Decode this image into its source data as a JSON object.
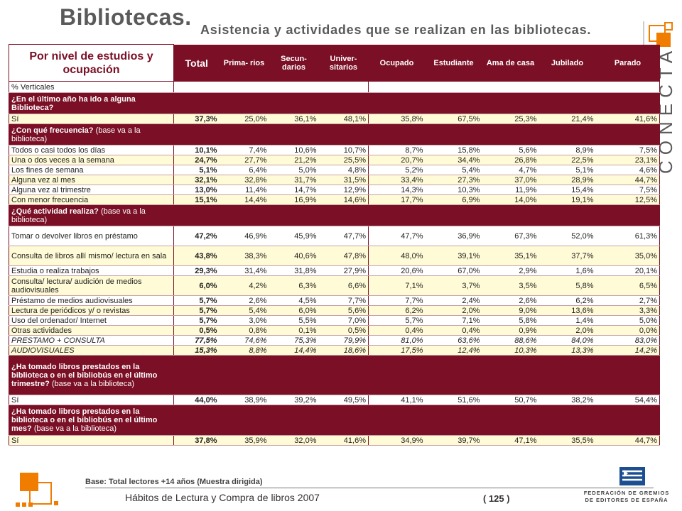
{
  "header": {
    "title": "Bibliotecas.",
    "subtitle": "Asistencia y actividades que se realizan en las bibliotecas.",
    "brand": "CONECTA"
  },
  "table": {
    "corner_title": "Por nivel de estudios y ocupación",
    "columns": [
      "Total",
      "Prima- rios",
      "Secun- darios",
      "Univer- sitarios",
      "Ocupado",
      "Estudiante",
      "Ama de casa",
      "Jubilado",
      "Parado"
    ],
    "section_label": "% Verticales",
    "blocks": [
      {
        "question": "¿En el último año ha ido a alguna Biblioteca?",
        "question_note": "",
        "rows": [
          {
            "label": "Sí",
            "values": [
              "37,3%",
              "25,0%",
              "36,1%",
              "48,1%",
              "35,8%",
              "67,5%",
              "25,3%",
              "21,4%",
              "41,6%"
            ]
          }
        ]
      },
      {
        "question": "¿Con qué frecuencia?",
        "question_note": "(base va a la biblioteca)",
        "rows": [
          {
            "label": "Todos o casi todos los días",
            "values": [
              "10,1%",
              "7,4%",
              "10,6%",
              "10,7%",
              "8,7%",
              "15,8%",
              "5,6%",
              "8,9%",
              "7,5%"
            ]
          },
          {
            "label": "Una o dos veces a la semana",
            "values": [
              "24,7%",
              "27,7%",
              "21,2%",
              "25,5%",
              "20,7%",
              "34,4%",
              "26,8%",
              "22,5%",
              "23,1%"
            ]
          },
          {
            "label": "Los fines de semana",
            "values": [
              "5,1%",
              "6,4%",
              "5,0%",
              "4,8%",
              "5,2%",
              "5,4%",
              "4,7%",
              "5,1%",
              "4,6%"
            ]
          },
          {
            "label": "Alguna vez al mes",
            "values": [
              "32,1%",
              "32,8%",
              "31,7%",
              "31,5%",
              "33,4%",
              "27,3%",
              "37,0%",
              "28,9%",
              "44,7%"
            ]
          },
          {
            "label": "Alguna vez al trimestre",
            "values": [
              "13,0%",
              "11,4%",
              "14,7%",
              "12,9%",
              "14,3%",
              "10,3%",
              "11,9%",
              "15,4%",
              "7,5%"
            ]
          },
          {
            "label": "Con menor frecuencia",
            "values": [
              "15,1%",
              "14,4%",
              "16,9%",
              "14,6%",
              "17,7%",
              "6,9%",
              "14,0%",
              "19,1%",
              "12,5%"
            ]
          }
        ]
      },
      {
        "question": "¿Qué actividad realiza?",
        "question_note": "(base va a la biblioteca)",
        "rows": [
          {
            "label": "Tomar o devolver libros en préstamo",
            "values": [
              "47,2%",
              "46,9%",
              "45,9%",
              "47,7%",
              "47,7%",
              "36,9%",
              "67,3%",
              "52,0%",
              "61,3%"
            ]
          },
          {
            "label": "Consulta de libros allí mismo/ lectura en sala",
            "values": [
              "43,8%",
              "38,3%",
              "40,6%",
              "47,8%",
              "48,0%",
              "39,1%",
              "35,1%",
              "37,7%",
              "35,0%"
            ]
          },
          {
            "label": "Estudia o realiza trabajos",
            "values": [
              "29,3%",
              "31,4%",
              "31,8%",
              "27,9%",
              "20,6%",
              "67,0%",
              "2,9%",
              "1,6%",
              "20,1%"
            ]
          },
          {
            "label": "Consulta/ lectura/ audición de medios audiovisuales",
            "values": [
              "6,0%",
              "4,2%",
              "6,3%",
              "6,6%",
              "7,1%",
              "3,7%",
              "3,5%",
              "5,8%",
              "6,5%"
            ]
          },
          {
            "label": "Préstamo de medios audiovisuales",
            "values": [
              "5,7%",
              "2,6%",
              "4,5%",
              "7,7%",
              "7,7%",
              "2,4%",
              "2,6%",
              "6,2%",
              "2,7%"
            ]
          },
          {
            "label": "Lectura de periódicos y/ o revistas",
            "values": [
              "5,7%",
              "5,4%",
              "6,0%",
              "5,6%",
              "6,2%",
              "2,0%",
              "9,0%",
              "13,6%",
              "3,3%"
            ]
          },
          {
            "label": "Uso del ordenador/ Internet",
            "values": [
              "5,7%",
              "3,0%",
              "5,5%",
              "7,0%",
              "5,7%",
              "7,1%",
              "5,8%",
              "1,4%",
              "5,0%"
            ]
          },
          {
            "label": "Otras actividades",
            "values": [
              "0,5%",
              "0,8%",
              "0,1%",
              "0,5%",
              "0,4%",
              "0,4%",
              "0,9%",
              "2,0%",
              "0,0%"
            ]
          },
          {
            "label": "PRESTAMO + CONSULTA",
            "italic": true,
            "values": [
              "77,5%",
              "74,6%",
              "75,3%",
              "79,9%",
              "81,0%",
              "63,6%",
              "88,6%",
              "84,0%",
              "83,0%"
            ]
          },
          {
            "label": "AUDIOVISUALES",
            "italic": true,
            "values": [
              "15,3%",
              "8,8%",
              "14,4%",
              "18,6%",
              "17,5%",
              "12,4%",
              "10,3%",
              "13,3%",
              "14,2%"
            ]
          }
        ]
      },
      {
        "question": "¿Ha tomado libros prestados en la biblioteca o en el bibliobús en el último trimestre?",
        "question_note": "(base va a la biblioteca)",
        "rows": [
          {
            "label": "Sí",
            "values": [
              "44,0%",
              "38,9%",
              "39,2%",
              "49,5%",
              "41,1%",
              "51,6%",
              "50,7%",
              "38,2%",
              "54,4%"
            ]
          }
        ]
      },
      {
        "question": "¿Ha tomado libros prestados en la biblioteca o en el bibliobús en el último mes?",
        "question_note": "(base va a la biblioteca)",
        "rows": [
          {
            "label": "Sí",
            "values": [
              "37,8%",
              "35,9%",
              "32,0%",
              "41,6%",
              "34,9%",
              "39,7%",
              "47,1%",
              "35,5%",
              "44,7%"
            ]
          }
        ]
      }
    ]
  },
  "footer": {
    "base_note": "Base: Total lectores +14 años (Muestra dirigida)",
    "doc_title": "Hábitos de Lectura y Compra de libros 2007",
    "page": "( 125 )",
    "federation_line1": "FEDERACIÓN DE GREMIOS",
    "federation_line2": "DE EDITORES DE ESPAÑA"
  },
  "colors": {
    "accent": "#7a0f25",
    "row_highlight": "#fffbd6",
    "orange": "#f07c00"
  }
}
